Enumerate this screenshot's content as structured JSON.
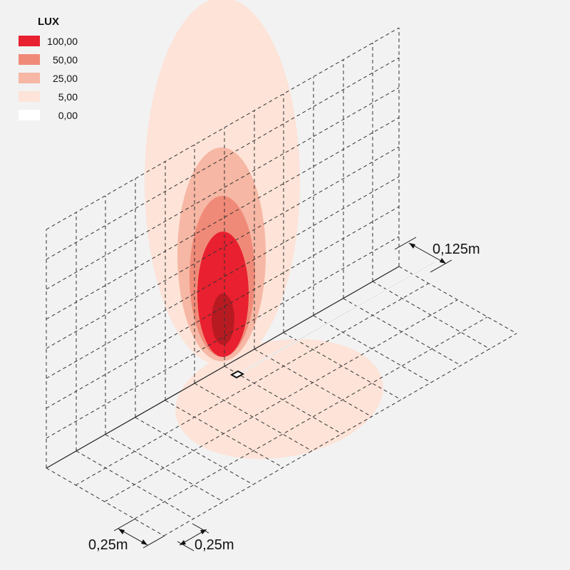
{
  "legend": {
    "title": "LUX",
    "items": [
      {
        "label": "100,00",
        "color": "#e8202f"
      },
      {
        "label": "50,00",
        "color": "#f08a78"
      },
      {
        "label": "25,00",
        "color": "#f6b7a4"
      },
      {
        "label": "5,00",
        "color": "#fde3d8"
      },
      {
        "label": "0,00",
        "color": "#ffffff"
      }
    ]
  },
  "dimensions": {
    "offset_label": "0,125m",
    "grid_x_label": "0,25m",
    "grid_y_label": "0,25m"
  },
  "colors": {
    "background": "#f2f2f2",
    "lux_100": "#e8202f",
    "lux_50": "#f08a78",
    "lux_25": "#f6b7a4",
    "lux_5": "#fde3d8",
    "lux_peak": "#b81a22"
  }
}
